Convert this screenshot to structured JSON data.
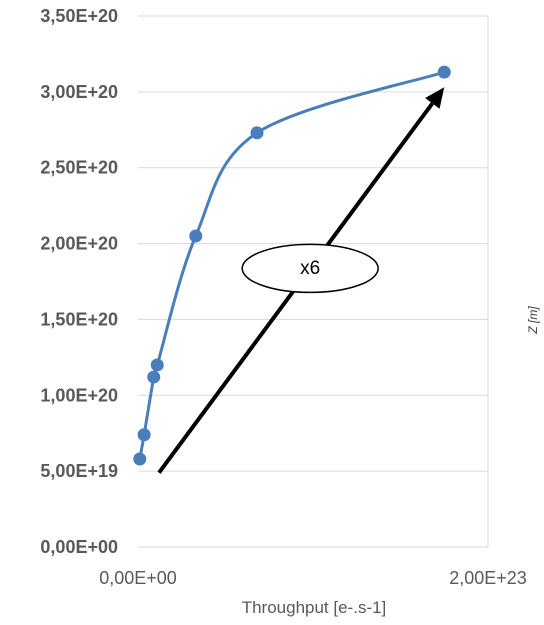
{
  "chart_data": {
    "type": "scatter",
    "title": "",
    "xlabel": "Throughput [e-.s-1]",
    "ylabel": "Z [m]",
    "xlim": [
      0,
      2e+23
    ],
    "ylim": [
      0,
      3.5e+20
    ],
    "x_tick_labels": [
      "0,00E+00",
      "2,00E+23"
    ],
    "y_tick_labels": [
      "0,00E+00",
      "5,00E+19",
      "1,00E+20",
      "1,50E+20",
      "2,00E+20",
      "2,50E+20",
      "3,00E+20",
      "3,50E+20"
    ],
    "grid": "horizontal",
    "smooth": true,
    "series": [
      {
        "points": [
          {
            "x": 1e+21,
            "y": 5.8e+19
          },
          {
            "x": 3.5e+21,
            "y": 7.4e+19
          },
          {
            "x": 9e+21,
            "y": 1.12e+20
          },
          {
            "x": 1.1e+22,
            "y": 1.2e+20
          },
          {
            "x": 3.3e+22,
            "y": 2.05e+20
          },
          {
            "x": 6.8e+22,
            "y": 2.73e+20
          },
          {
            "x": 1.75e+23,
            "y": 3.13e+20
          }
        ]
      }
    ],
    "annotations": [
      {
        "text": "x6",
        "arrow_from": {
          "x": 1.2e+22,
          "y": 4.9e+19
        },
        "arrow_to": {
          "x": 1.75e+23,
          "y": 3.03e+20
        }
      }
    ],
    "colors": {
      "series": "#4a7ebb",
      "grid": "#d9d9d9",
      "text": "#595959",
      "arrow": "#000000"
    }
  }
}
